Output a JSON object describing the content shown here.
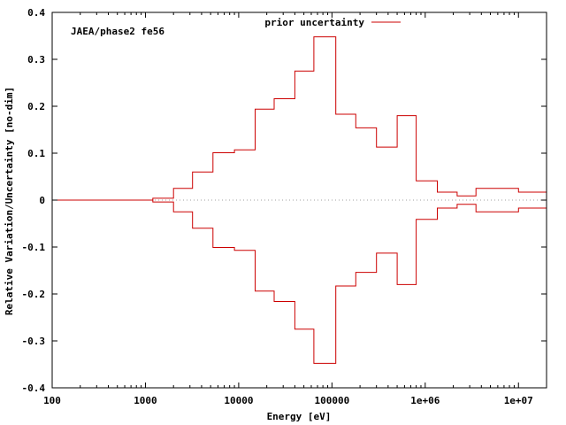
{
  "chart_data": {
    "type": "line",
    "annotation": "JAEA/phase2 fe56",
    "xlabel": "Energy [eV]",
    "ylabel": "Relative Variation/Uncertainty [no-dim]",
    "xscale": "log",
    "xlim": [
      100,
      20000000
    ],
    "ylim": [
      -0.4,
      0.4
    ],
    "x_ticks": [
      {
        "value": 100,
        "label": "100"
      },
      {
        "value": 1000,
        "label": "1000"
      },
      {
        "value": 10000,
        "label": "10000"
      },
      {
        "value": 100000,
        "label": "100000"
      },
      {
        "value": 1000000,
        "label": "1e+06"
      },
      {
        "value": 10000000,
        "label": "1e+07"
      }
    ],
    "y_ticks": [
      {
        "value": 0.4,
        "label": "0.4"
      },
      {
        "value": 0.3,
        "label": "0.3"
      },
      {
        "value": 0.2,
        "label": "0.2"
      },
      {
        "value": 0.1,
        "label": "0.1"
      },
      {
        "value": 0,
        "label": "0"
      },
      {
        "value": -0.1,
        "label": "-0.1"
      },
      {
        "value": -0.2,
        "label": "-0.2"
      },
      {
        "value": -0.3,
        "label": "-0.3"
      },
      {
        "value": -0.4,
        "label": "-0.4"
      }
    ],
    "legend_position": "top-center",
    "zero_line": "dotted",
    "series": [
      {
        "name": "prior uncertainty",
        "color": "#cc0000",
        "style": "step",
        "mirrored": true,
        "bin_edges": [
          100,
          1200,
          2000,
          3200,
          5300,
          9000,
          15000,
          24000,
          40000,
          64000,
          110000,
          180000,
          300000,
          500000,
          800000,
          1350000,
          2200000,
          3500000,
          10000000,
          20000000
        ],
        "values": [
          0.0,
          0.004,
          0.025,
          0.06,
          0.101,
          0.107,
          0.194,
          0.216,
          0.275,
          0.348,
          0.183,
          0.154,
          0.113,
          0.18,
          0.041,
          0.017,
          0.009,
          0.025,
          0.017
        ]
      }
    ]
  }
}
